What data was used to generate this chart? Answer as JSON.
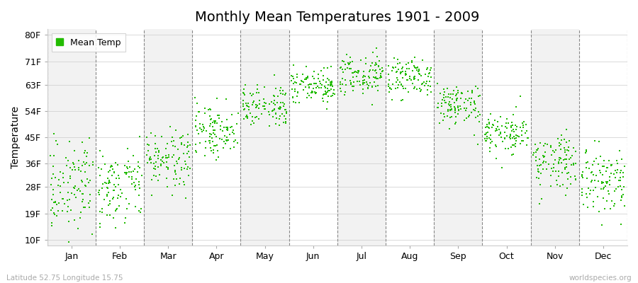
{
  "title": "Monthly Mean Temperatures 1901 - 2009",
  "ylabel": "Temperature",
  "bottom_left": "Latitude 52.75 Longitude 15.75",
  "bottom_right": "worldspecies.org",
  "legend_label": "Mean Temp",
  "dot_color": "#22bb00",
  "dot_size": 3,
  "months": [
    "Jan",
    "Feb",
    "Mar",
    "Apr",
    "May",
    "Jun",
    "Jul",
    "Aug",
    "Sep",
    "Oct",
    "Nov",
    "Dec"
  ],
  "yticks_val": [
    10,
    19,
    28,
    36,
    45,
    54,
    63,
    71,
    80
  ],
  "yticks_label": [
    "10F",
    "19F",
    "28F",
    "36F",
    "45F",
    "54F",
    "63F",
    "71F",
    "80F"
  ],
  "ylim": [
    8,
    82
  ],
  "mean_temps_c": [
    -2.0,
    -1.5,
    3.0,
    8.5,
    13.5,
    17.0,
    19.0,
    18.5,
    13.5,
    8.0,
    2.5,
    -1.0
  ],
  "std_temps_c": [
    3.8,
    3.8,
    2.8,
    2.5,
    2.0,
    2.0,
    2.0,
    2.0,
    2.0,
    2.0,
    2.8,
    3.5
  ],
  "n_years": 109,
  "background_colors": [
    "#f2f2f2",
    "#ffffff"
  ],
  "title_fontsize": 14,
  "axis_fontsize": 10,
  "tick_fontsize": 9
}
